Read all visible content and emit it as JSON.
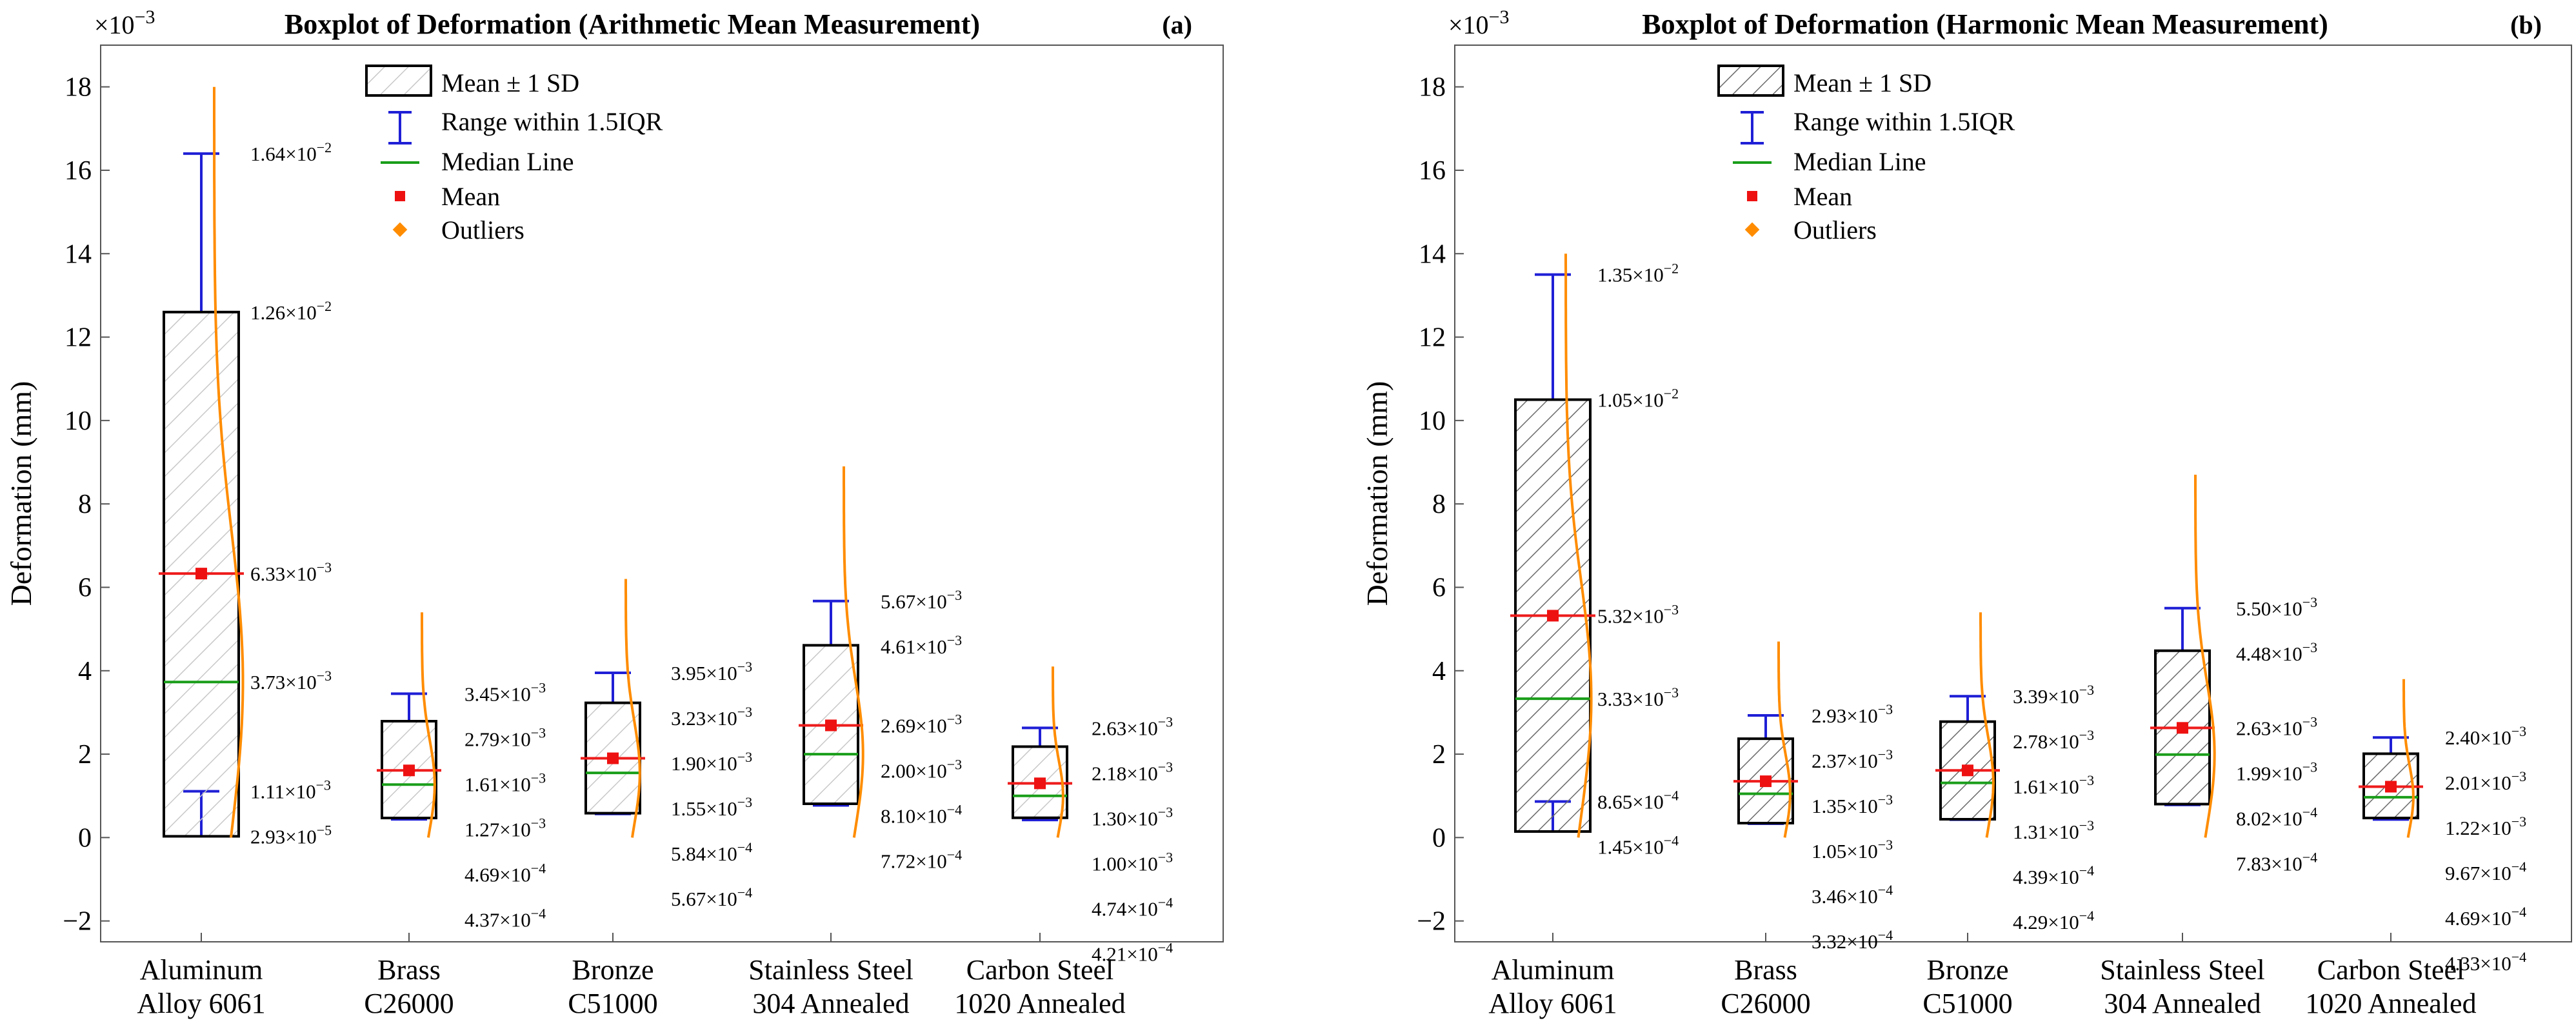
{
  "legend": {
    "sd": "Mean ± 1 SD",
    "range": "Range within 1.5IQR",
    "median": "Median Line",
    "mean": "Mean",
    "outliers": "Outliers"
  },
  "colors": {
    "whisker": "#1f1fd6",
    "median": "#1a9e1a",
    "mean_line": "#ee1c1c",
    "mean_marker": "#ee1111",
    "outlier": "#ff8c00",
    "curve": "#ff8c00",
    "box": "#000000"
  },
  "chart_data": [
    {
      "type": "box",
      "panel": "(a)",
      "title": "Boxplot of Deformation (Arithmetic Mean Measurement)",
      "xlabel": "",
      "ylabel": "Deformation (mm)",
      "multiplier": "×10",
      "multiplier_exp": "−3",
      "ylim": [
        -2.5,
        19
      ],
      "yticks": [
        -2,
        0,
        2,
        4,
        6,
        8,
        10,
        12,
        14,
        16,
        18
      ],
      "box_pattern": "light",
      "categories": [
        [
          "Aluminum",
          "Alloy 6061"
        ],
        [
          "Brass",
          "C26000"
        ],
        [
          "Bronze",
          "C51000"
        ],
        [
          "Stainless Steel",
          "304 Annealed"
        ],
        [
          "Carbon Steel",
          "1020 Annealed"
        ]
      ],
      "groups": [
        {
          "whisker_high": 16.4,
          "box_high": 12.6,
          "mean": 6.33,
          "median": 3.73,
          "box_low": 0.03,
          "whisker_low": 1.11,
          "curve": {
            "top": 18.0,
            "bottom": 0.0,
            "width": 0.45
          },
          "labels": [
            {
              "m": "1.64",
              "e": "−2",
              "y": 16.4
            },
            {
              "m": "1.26",
              "e": "−2",
              "y": 12.6
            },
            {
              "m": "6.33",
              "e": "−3",
              "y": 6.33
            },
            {
              "m": "3.73",
              "e": "−3",
              "y": 3.73
            },
            {
              "m": "1.11",
              "e": "−3",
              "y": 1.11
            },
            {
              "m": "2.93",
              "e": "−5",
              "y": 0.03
            }
          ]
        },
        {
          "whisker_high": 3.45,
          "box_high": 2.79,
          "mean": 1.61,
          "median": 1.27,
          "box_low": 0.469,
          "whisker_low": 0.437,
          "curve": {
            "top": 5.4,
            "bottom": 0.0,
            "width": 0.2
          },
          "labels": [
            {
              "m": "3.45",
              "e": "−3",
              "y": 3.45
            },
            {
              "m": "2.79",
              "e": "−3",
              "y": 2.79
            },
            {
              "m": "1.61",
              "e": "−3",
              "y": 1.61
            },
            {
              "m": "1.27",
              "e": "−3",
              "y": 1.27
            },
            {
              "m": "4.69",
              "e": "−4",
              "y": 0.469
            },
            {
              "m": "4.37",
              "e": "−4",
              "y": 0.437
            }
          ]
        },
        {
          "whisker_high": 3.95,
          "box_high": 3.23,
          "mean": 1.9,
          "median": 1.55,
          "box_low": 0.584,
          "whisker_low": 0.567,
          "curve": {
            "top": 6.2,
            "bottom": 0.0,
            "width": 0.22
          },
          "labels": [
            {
              "m": "3.95",
              "e": "−3",
              "y": 3.95
            },
            {
              "m": "3.23",
              "e": "−3",
              "y": 3.23
            },
            {
              "m": "1.90",
              "e": "−3",
              "y": 1.9
            },
            {
              "m": "1.55",
              "e": "−3",
              "y": 1.55
            },
            {
              "m": "5.84",
              "e": "−4",
              "y": 0.584
            },
            {
              "m": "5.67",
              "e": "−4",
              "y": 0.567
            }
          ]
        },
        {
          "whisker_high": 5.67,
          "box_high": 4.61,
          "mean": 2.69,
          "median": 2.0,
          "box_low": 0.81,
          "whisker_low": 0.772,
          "curve": {
            "top": 8.9,
            "bottom": 0.0,
            "width": 0.3
          },
          "labels": [
            {
              "m": "5.67",
              "e": "−3",
              "y": 5.67
            },
            {
              "m": "4.61",
              "e": "−3",
              "y": 4.61
            },
            {
              "m": "2.69",
              "e": "−3",
              "y": 2.69
            },
            {
              "m": "2.00",
              "e": "−3",
              "y": 2.0
            },
            {
              "m": "8.10",
              "e": "−4",
              "y": 0.81
            },
            {
              "m": "7.72",
              "e": "−4",
              "y": 0.772
            }
          ]
        },
        {
          "whisker_high": 2.63,
          "box_high": 2.18,
          "mean": 1.3,
          "median": 1.0,
          "box_low": 0.474,
          "whisker_low": 0.421,
          "curve": {
            "top": 4.1,
            "bottom": 0.0,
            "width": 0.16
          },
          "labels": [
            {
              "m": "2.63",
              "e": "−3",
              "y": 2.63
            },
            {
              "m": "2.18",
              "e": "−3",
              "y": 2.18
            },
            {
              "m": "1.30",
              "e": "−3",
              "y": 1.3
            },
            {
              "m": "1.00",
              "e": "−3",
              "y": 1.0
            },
            {
              "m": "4.74",
              "e": "−4",
              "y": 0.474
            },
            {
              "m": "4.21",
              "e": "−4",
              "y": 0.421
            }
          ]
        }
      ]
    },
    {
      "type": "box",
      "panel": "(b)",
      "title": "Boxplot of Deformation (Harmonic Mean Measurement)",
      "xlabel": "",
      "ylabel": "Deformation (mm)",
      "multiplier": "×10",
      "multiplier_exp": "−3",
      "ylim": [
        -2.5,
        19
      ],
      "yticks": [
        -2,
        0,
        2,
        4,
        6,
        8,
        10,
        12,
        14,
        16,
        18
      ],
      "box_pattern": "dark",
      "categories": [
        [
          "Aluminum",
          "Alloy 6061"
        ],
        [
          "Brass",
          "C26000"
        ],
        [
          "Bronze",
          "C51000"
        ],
        [
          "Stainless Steel",
          "304 Annealed"
        ],
        [
          "Carbon Steel",
          "1020 Annealed"
        ]
      ],
      "groups": [
        {
          "whisker_high": 13.5,
          "box_high": 10.5,
          "mean": 5.32,
          "median": 3.33,
          "box_low": 0.145,
          "whisker_low": 0.865,
          "curve": {
            "top": 14.0,
            "bottom": 0.0,
            "width": 0.4
          },
          "labels": [
            {
              "m": "1.35",
              "e": "−2",
              "y": 13.5
            },
            {
              "m": "1.05",
              "e": "−2",
              "y": 10.5
            },
            {
              "m": "5.32",
              "e": "−3",
              "y": 5.32
            },
            {
              "m": "3.33",
              "e": "−3",
              "y": 3.33
            },
            {
              "m": "8.65",
              "e": "−4",
              "y": 0.865
            },
            {
              "m": "1.45",
              "e": "−4",
              "y": 0.145
            }
          ]
        },
        {
          "whisker_high": 2.93,
          "box_high": 2.37,
          "mean": 1.35,
          "median": 1.05,
          "box_low": 0.346,
          "whisker_low": 0.332,
          "curve": {
            "top": 4.7,
            "bottom": 0.0,
            "width": 0.18
          },
          "labels": [
            {
              "m": "2.93",
              "e": "−3",
              "y": 2.93
            },
            {
              "m": "2.37",
              "e": "−3",
              "y": 2.37
            },
            {
              "m": "1.35",
              "e": "−3",
              "y": 1.35
            },
            {
              "m": "1.05",
              "e": "−3",
              "y": 1.05
            },
            {
              "m": "3.46",
              "e": "−4",
              "y": 0.346
            },
            {
              "m": "3.32",
              "e": "−4",
              "y": 0.332
            }
          ]
        },
        {
          "whisker_high": 3.39,
          "box_high": 2.78,
          "mean": 1.61,
          "median": 1.31,
          "box_low": 0.439,
          "whisker_low": 0.429,
          "curve": {
            "top": 5.4,
            "bottom": 0.0,
            "width": 0.2
          },
          "labels": [
            {
              "m": "3.39",
              "e": "−3",
              "y": 3.39
            },
            {
              "m": "2.78",
              "e": "−3",
              "y": 2.78
            },
            {
              "m": "1.61",
              "e": "−3",
              "y": 1.61
            },
            {
              "m": "1.31",
              "e": "−3",
              "y": 1.31
            },
            {
              "m": "4.39",
              "e": "−4",
              "y": 0.439
            },
            {
              "m": "4.29",
              "e": "−4",
              "y": 0.429
            }
          ]
        },
        {
          "whisker_high": 5.5,
          "box_high": 4.48,
          "mean": 2.63,
          "median": 1.99,
          "box_low": 0.802,
          "whisker_low": 0.783,
          "curve": {
            "top": 8.7,
            "bottom": 0.0,
            "width": 0.3
          },
          "labels": [
            {
              "m": "5.50",
              "e": "−3",
              "y": 5.5
            },
            {
              "m": "4.48",
              "e": "−3",
              "y": 4.48
            },
            {
              "m": "2.63",
              "e": "−3",
              "y": 2.63
            },
            {
              "m": "1.99",
              "e": "−3",
              "y": 1.99
            },
            {
              "m": "8.02",
              "e": "−4",
              "y": 0.802
            },
            {
              "m": "7.83",
              "e": "−4",
              "y": 0.783
            }
          ]
        },
        {
          "whisker_high": 2.4,
          "box_high": 2.01,
          "mean": 1.22,
          "median": 0.967,
          "box_low": 0.469,
          "whisker_low": 0.433,
          "curve": {
            "top": 3.8,
            "bottom": 0.0,
            "width": 0.15
          },
          "labels": [
            {
              "m": "2.40",
              "e": "−3",
              "y": 2.4
            },
            {
              "m": "2.01",
              "e": "−3",
              "y": 2.01
            },
            {
              "m": "1.22",
              "e": "−3",
              "y": 1.22
            },
            {
              "m": "9.67",
              "e": "−4",
              "y": 0.967
            },
            {
              "m": "4.69",
              "e": "−4",
              "y": 0.469
            },
            {
              "m": "4.33",
              "e": "−4",
              "y": 0.433
            }
          ]
        }
      ]
    }
  ]
}
